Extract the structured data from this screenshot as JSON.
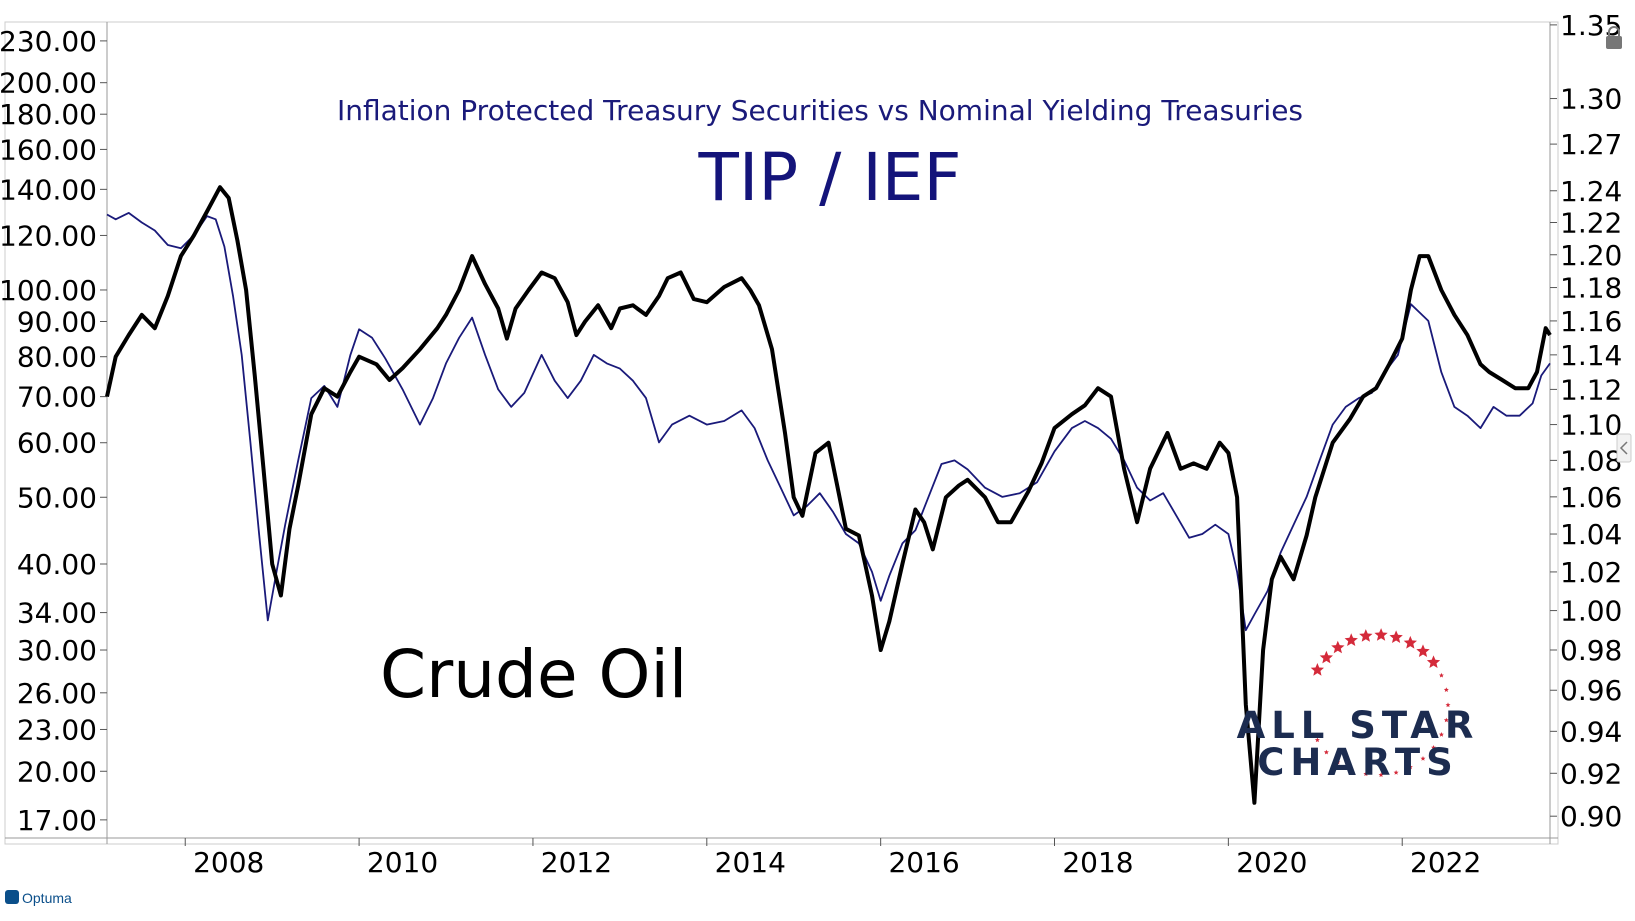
{
  "chart_data": {
    "type": "line",
    "title": "TIP / IEF",
    "subtitle": "Inflation Protected Treasury Securities vs Nominal Yielding Treasuries",
    "annotation": "Crude Oil",
    "brand": "ALL STAR CHARTS",
    "brand_line1": "ALL STAR",
    "brand_line2": "CHARTS",
    "footer": "Optuma",
    "x_ticks": [
      "2008",
      "2010",
      "2012",
      "2014",
      "2016",
      "2018",
      "2020",
      "2022"
    ],
    "xlim": [
      2007.1,
      2023.7
    ],
    "left_axis": {
      "scale": "log",
      "ylim": [
        16.0,
        245.0
      ],
      "ticks": [
        "230.00",
        "200.00",
        "180.00",
        "160.00",
        "140.00",
        "120.00",
        "100.00",
        "90.00",
        "80.00",
        "70.00",
        "60.00",
        "50.00",
        "40.00",
        "34.00",
        "30.00",
        "26.00",
        "23.00",
        "20.00",
        "17.00"
      ]
    },
    "right_axis": {
      "scale": "log",
      "ylim": [
        0.89,
        1.352
      ],
      "ticks": [
        "1.35",
        "1.30",
        "1.27",
        "1.24",
        "1.22",
        "1.20",
        "1.18",
        "1.16",
        "1.14",
        "1.12",
        "1.10",
        "1.08",
        "1.06",
        "1.04",
        "1.02",
        "1.00",
        "0.98",
        "0.96",
        "0.94",
        "0.92",
        "0.90"
      ]
    },
    "grid": false,
    "series": [
      {
        "name": "Crude Oil",
        "axis": "left",
        "color": "#000000",
        "points": [
          [
            2007.1,
            70
          ],
          [
            2007.2,
            80
          ],
          [
            2007.35,
            86
          ],
          [
            2007.5,
            92
          ],
          [
            2007.65,
            88
          ],
          [
            2007.8,
            98
          ],
          [
            2007.95,
            112
          ],
          [
            2008.1,
            120
          ],
          [
            2008.25,
            130
          ],
          [
            2008.4,
            141
          ],
          [
            2008.5,
            136
          ],
          [
            2008.6,
            118
          ],
          [
            2008.7,
            100
          ],
          [
            2008.8,
            75
          ],
          [
            2008.9,
            55
          ],
          [
            2009.0,
            40
          ],
          [
            2009.1,
            36
          ],
          [
            2009.2,
            45
          ],
          [
            2009.3,
            52
          ],
          [
            2009.45,
            66
          ],
          [
            2009.6,
            72
          ],
          [
            2009.75,
            70
          ],
          [
            2009.9,
            76
          ],
          [
            2010.0,
            80
          ],
          [
            2010.2,
            78
          ],
          [
            2010.35,
            74
          ],
          [
            2010.5,
            77
          ],
          [
            2010.7,
            82
          ],
          [
            2010.9,
            88
          ],
          [
            2011.0,
            92
          ],
          [
            2011.15,
            100
          ],
          [
            2011.3,
            112
          ],
          [
            2011.45,
            102
          ],
          [
            2011.6,
            94
          ],
          [
            2011.7,
            85
          ],
          [
            2011.8,
            94
          ],
          [
            2011.95,
            100
          ],
          [
            2012.1,
            106
          ],
          [
            2012.25,
            104
          ],
          [
            2012.4,
            96
          ],
          [
            2012.5,
            86
          ],
          [
            2012.6,
            90
          ],
          [
            2012.75,
            95
          ],
          [
            2012.9,
            88
          ],
          [
            2013.0,
            94
          ],
          [
            2013.15,
            95
          ],
          [
            2013.3,
            92
          ],
          [
            2013.45,
            98
          ],
          [
            2013.55,
            104
          ],
          [
            2013.7,
            106
          ],
          [
            2013.85,
            97
          ],
          [
            2014.0,
            96
          ],
          [
            2014.2,
            101
          ],
          [
            2014.4,
            104
          ],
          [
            2014.5,
            100
          ],
          [
            2014.6,
            95
          ],
          [
            2014.75,
            82
          ],
          [
            2014.9,
            62
          ],
          [
            2015.0,
            50
          ],
          [
            2015.1,
            47
          ],
          [
            2015.25,
            58
          ],
          [
            2015.4,
            60
          ],
          [
            2015.5,
            52
          ],
          [
            2015.6,
            45
          ],
          [
            2015.75,
            44
          ],
          [
            2015.9,
            36
          ],
          [
            2016.0,
            30
          ],
          [
            2016.1,
            33
          ],
          [
            2016.25,
            40
          ],
          [
            2016.4,
            48
          ],
          [
            2016.5,
            46
          ],
          [
            2016.6,
            42
          ],
          [
            2016.75,
            50
          ],
          [
            2016.9,
            52
          ],
          [
            2017.0,
            53
          ],
          [
            2017.2,
            50
          ],
          [
            2017.35,
            46
          ],
          [
            2017.5,
            46
          ],
          [
            2017.7,
            51
          ],
          [
            2017.85,
            56
          ],
          [
            2018.0,
            63
          ],
          [
            2018.2,
            66
          ],
          [
            2018.35,
            68
          ],
          [
            2018.5,
            72
          ],
          [
            2018.65,
            70
          ],
          [
            2018.8,
            55
          ],
          [
            2018.95,
            46
          ],
          [
            2019.1,
            55
          ],
          [
            2019.3,
            62
          ],
          [
            2019.45,
            55
          ],
          [
            2019.6,
            56
          ],
          [
            2019.75,
            55
          ],
          [
            2019.9,
            60
          ],
          [
            2020.0,
            58
          ],
          [
            2020.1,
            50
          ],
          [
            2020.2,
            25
          ],
          [
            2020.3,
            18
          ],
          [
            2020.4,
            30
          ],
          [
            2020.5,
            38
          ],
          [
            2020.6,
            41
          ],
          [
            2020.75,
            38
          ],
          [
            2020.9,
            44
          ],
          [
            2021.0,
            50
          ],
          [
            2021.2,
            60
          ],
          [
            2021.4,
            65
          ],
          [
            2021.55,
            70
          ],
          [
            2021.7,
            72
          ],
          [
            2021.85,
            78
          ],
          [
            2022.0,
            85
          ],
          [
            2022.1,
            100
          ],
          [
            2022.2,
            112
          ],
          [
            2022.3,
            112
          ],
          [
            2022.45,
            100
          ],
          [
            2022.6,
            92
          ],
          [
            2022.75,
            86
          ],
          [
            2022.9,
            78
          ],
          [
            2023.0,
            76
          ],
          [
            2023.15,
            74
          ],
          [
            2023.3,
            72
          ],
          [
            2023.45,
            72
          ],
          [
            2023.55,
            76
          ],
          [
            2023.65,
            88
          ],
          [
            2023.7,
            86
          ]
        ]
      },
      {
        "name": "TIP / IEF",
        "axis": "right",
        "color": "#1a1a7a",
        "points": [
          [
            2007.1,
            1.225
          ],
          [
            2007.2,
            1.222
          ],
          [
            2007.35,
            1.226
          ],
          [
            2007.5,
            1.22
          ],
          [
            2007.65,
            1.215
          ],
          [
            2007.8,
            1.206
          ],
          [
            2007.95,
            1.204
          ],
          [
            2008.1,
            1.212
          ],
          [
            2008.25,
            1.224
          ],
          [
            2008.35,
            1.222
          ],
          [
            2008.45,
            1.205
          ],
          [
            2008.55,
            1.175
          ],
          [
            2008.65,
            1.14
          ],
          [
            2008.75,
            1.09
          ],
          [
            2008.85,
            1.04
          ],
          [
            2008.95,
            0.995
          ],
          [
            2009.05,
            1.02
          ],
          [
            2009.15,
            1.045
          ],
          [
            2009.3,
            1.08
          ],
          [
            2009.45,
            1.115
          ],
          [
            2009.6,
            1.122
          ],
          [
            2009.75,
            1.11
          ],
          [
            2009.9,
            1.14
          ],
          [
            2010.0,
            1.155
          ],
          [
            2010.15,
            1.15
          ],
          [
            2010.3,
            1.138
          ],
          [
            2010.5,
            1.12
          ],
          [
            2010.7,
            1.1
          ],
          [
            2010.85,
            1.115
          ],
          [
            2011.0,
            1.135
          ],
          [
            2011.15,
            1.15
          ],
          [
            2011.3,
            1.162
          ],
          [
            2011.45,
            1.14
          ],
          [
            2011.6,
            1.12
          ],
          [
            2011.75,
            1.11
          ],
          [
            2011.9,
            1.118
          ],
          [
            2012.1,
            1.14
          ],
          [
            2012.25,
            1.125
          ],
          [
            2012.4,
            1.115
          ],
          [
            2012.55,
            1.125
          ],
          [
            2012.7,
            1.14
          ],
          [
            2012.85,
            1.135
          ],
          [
            2013.0,
            1.132
          ],
          [
            2013.15,
            1.125
          ],
          [
            2013.3,
            1.115
          ],
          [
            2013.45,
            1.09
          ],
          [
            2013.6,
            1.1
          ],
          [
            2013.8,
            1.105
          ],
          [
            2014.0,
            1.1
          ],
          [
            2014.2,
            1.102
          ],
          [
            2014.4,
            1.108
          ],
          [
            2014.55,
            1.098
          ],
          [
            2014.7,
            1.08
          ],
          [
            2014.85,
            1.065
          ],
          [
            2015.0,
            1.05
          ],
          [
            2015.15,
            1.055
          ],
          [
            2015.3,
            1.062
          ],
          [
            2015.45,
            1.052
          ],
          [
            2015.6,
            1.04
          ],
          [
            2015.75,
            1.035
          ],
          [
            2015.9,
            1.02
          ],
          [
            2016.0,
            1.005
          ],
          [
            2016.1,
            1.018
          ],
          [
            2016.25,
            1.035
          ],
          [
            2016.4,
            1.042
          ],
          [
            2016.55,
            1.06
          ],
          [
            2016.7,
            1.078
          ],
          [
            2016.85,
            1.08
          ],
          [
            2017.0,
            1.075
          ],
          [
            2017.2,
            1.065
          ],
          [
            2017.4,
            1.06
          ],
          [
            2017.6,
            1.062
          ],
          [
            2017.8,
            1.068
          ],
          [
            2018.0,
            1.085
          ],
          [
            2018.2,
            1.098
          ],
          [
            2018.35,
            1.102
          ],
          [
            2018.5,
            1.098
          ],
          [
            2018.65,
            1.092
          ],
          [
            2018.8,
            1.08
          ],
          [
            2018.95,
            1.065
          ],
          [
            2019.1,
            1.058
          ],
          [
            2019.25,
            1.062
          ],
          [
            2019.4,
            1.05
          ],
          [
            2019.55,
            1.038
          ],
          [
            2019.7,
            1.04
          ],
          [
            2019.85,
            1.045
          ],
          [
            2020.0,
            1.04
          ],
          [
            2020.1,
            1.02
          ],
          [
            2020.2,
            0.99
          ],
          [
            2020.3,
            0.998
          ],
          [
            2020.45,
            1.01
          ],
          [
            2020.6,
            1.03
          ],
          [
            2020.75,
            1.045
          ],
          [
            2020.9,
            1.06
          ],
          [
            2021.05,
            1.08
          ],
          [
            2021.2,
            1.1
          ],
          [
            2021.35,
            1.11
          ],
          [
            2021.5,
            1.115
          ],
          [
            2021.65,
            1.118
          ],
          [
            2021.8,
            1.13
          ],
          [
            2021.95,
            1.14
          ],
          [
            2022.1,
            1.17
          ],
          [
            2022.2,
            1.165
          ],
          [
            2022.3,
            1.16
          ],
          [
            2022.45,
            1.13
          ],
          [
            2022.6,
            1.11
          ],
          [
            2022.75,
            1.105
          ],
          [
            2022.9,
            1.098
          ],
          [
            2023.05,
            1.11
          ],
          [
            2023.2,
            1.105
          ],
          [
            2023.35,
            1.105
          ],
          [
            2023.5,
            1.112
          ],
          [
            2023.6,
            1.128
          ],
          [
            2023.7,
            1.135
          ]
        ]
      }
    ]
  }
}
